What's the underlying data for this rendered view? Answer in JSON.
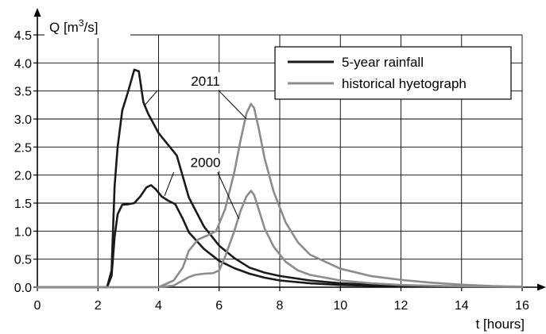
{
  "chart_data": {
    "type": "line",
    "title": "",
    "xlabel": "t [hours]",
    "ylabel": "Q [m³/s]",
    "ylabel_parts": {
      "pre": "Q [m",
      "sup": "3",
      "post": "/s]"
    },
    "xlim": [
      0,
      16
    ],
    "ylim": [
      0,
      4.5
    ],
    "x_ticks": [
      0,
      2,
      4,
      6,
      8,
      10,
      12,
      14,
      16
    ],
    "x_tick_labels": [
      "0",
      "2",
      "4",
      "6",
      "8",
      "10",
      "12",
      "14",
      "16"
    ],
    "y_ticks": [
      0,
      0.5,
      1.0,
      1.5,
      2.0,
      2.5,
      3.0,
      3.5,
      4.0,
      4.5
    ],
    "y_tick_labels": [
      "0.0",
      "0.5",
      "1.0",
      "1.5",
      "2.0",
      "2.5",
      "3.0",
      "3.5",
      "4.0",
      "4.5"
    ],
    "grid": true,
    "legend": {
      "placement": "top-right",
      "entries": [
        {
          "label": "5-year rainfall",
          "color": "#1a1a1a"
        },
        {
          "label": "historical hyetograph",
          "color": "#8c8c8c"
        }
      ]
    },
    "annotations": [
      {
        "text": "2011",
        "x": 5.55,
        "y": 3.65
      },
      {
        "text": "2000",
        "x": 5.55,
        "y": 2.2
      }
    ],
    "series": [
      {
        "name": "5-year rainfall 2011",
        "color": "#1a1a1a",
        "x": [
          0,
          2.3,
          2.45,
          2.55,
          2.65,
          2.8,
          3.0,
          3.2,
          3.35,
          3.5,
          3.65,
          3.8,
          4.0,
          4.3,
          4.6,
          5.0,
          5.5,
          6.0,
          6.5,
          7.0,
          7.5,
          8.0,
          9.0,
          10.0,
          11.0,
          12.0,
          13.0,
          14.0,
          15.0,
          16.0
        ],
        "y": [
          0,
          0,
          0.3,
          1.8,
          2.5,
          3.15,
          3.5,
          3.88,
          3.85,
          3.3,
          3.1,
          2.95,
          2.75,
          2.55,
          2.35,
          1.6,
          1.08,
          0.74,
          0.52,
          0.35,
          0.26,
          0.2,
          0.12,
          0.07,
          0.045,
          0.03,
          0.02,
          0.012,
          0.008,
          0.005
        ]
      },
      {
        "name": "5-year rainfall 2000",
        "color": "#1a1a1a",
        "x": [
          0,
          2.3,
          2.45,
          2.55,
          2.65,
          2.8,
          3.0,
          3.2,
          3.4,
          3.6,
          3.75,
          3.9,
          4.1,
          4.3,
          4.55,
          4.8,
          5.0,
          5.5,
          6.0,
          6.5,
          7.0,
          7.5,
          8.0,
          9.0,
          10.0,
          11.0,
          12.0,
          13.0,
          14.0,
          16.0
        ],
        "y": [
          0,
          0,
          0.2,
          0.9,
          1.3,
          1.47,
          1.48,
          1.5,
          1.62,
          1.78,
          1.82,
          1.75,
          1.62,
          1.55,
          1.48,
          1.22,
          0.98,
          0.68,
          0.47,
          0.34,
          0.24,
          0.17,
          0.12,
          0.07,
          0.04,
          0.025,
          0.015,
          0.01,
          0.006,
          0.003
        ]
      },
      {
        "name": "historical hyetograph 2011",
        "color": "#8c8c8c",
        "x": [
          0,
          4.0,
          4.5,
          4.8,
          5.0,
          5.3,
          5.6,
          5.9,
          6.2,
          6.5,
          6.7,
          6.9,
          7.05,
          7.15,
          7.3,
          7.5,
          7.8,
          8.2,
          8.6,
          9.0,
          10.0,
          11.0,
          12.0,
          13.0,
          14.0,
          15.0,
          16.0
        ],
        "y": [
          0,
          0,
          0.12,
          0.35,
          0.65,
          0.85,
          0.92,
          1.0,
          1.4,
          2.05,
          2.6,
          3.1,
          3.27,
          3.2,
          2.85,
          2.3,
          1.7,
          1.15,
          0.8,
          0.58,
          0.33,
          0.2,
          0.13,
          0.08,
          0.045,
          0.02,
          0.01
        ]
      },
      {
        "name": "historical hyetograph 2000",
        "color": "#8c8c8c",
        "x": [
          0,
          4.0,
          4.5,
          4.8,
          5.0,
          5.2,
          5.5,
          5.8,
          6.0,
          6.2,
          6.5,
          6.7,
          6.9,
          7.05,
          7.15,
          7.3,
          7.5,
          7.8,
          8.2,
          8.6,
          9.0,
          10.0,
          11.0,
          12.0,
          13.0,
          14.0,
          16.0
        ],
        "y": [
          0,
          0,
          0.03,
          0.12,
          0.18,
          0.22,
          0.24,
          0.25,
          0.3,
          0.55,
          1.0,
          1.35,
          1.62,
          1.72,
          1.65,
          1.4,
          1.05,
          0.72,
          0.45,
          0.3,
          0.22,
          0.12,
          0.07,
          0.04,
          0.025,
          0.015,
          0.005
        ]
      }
    ]
  }
}
